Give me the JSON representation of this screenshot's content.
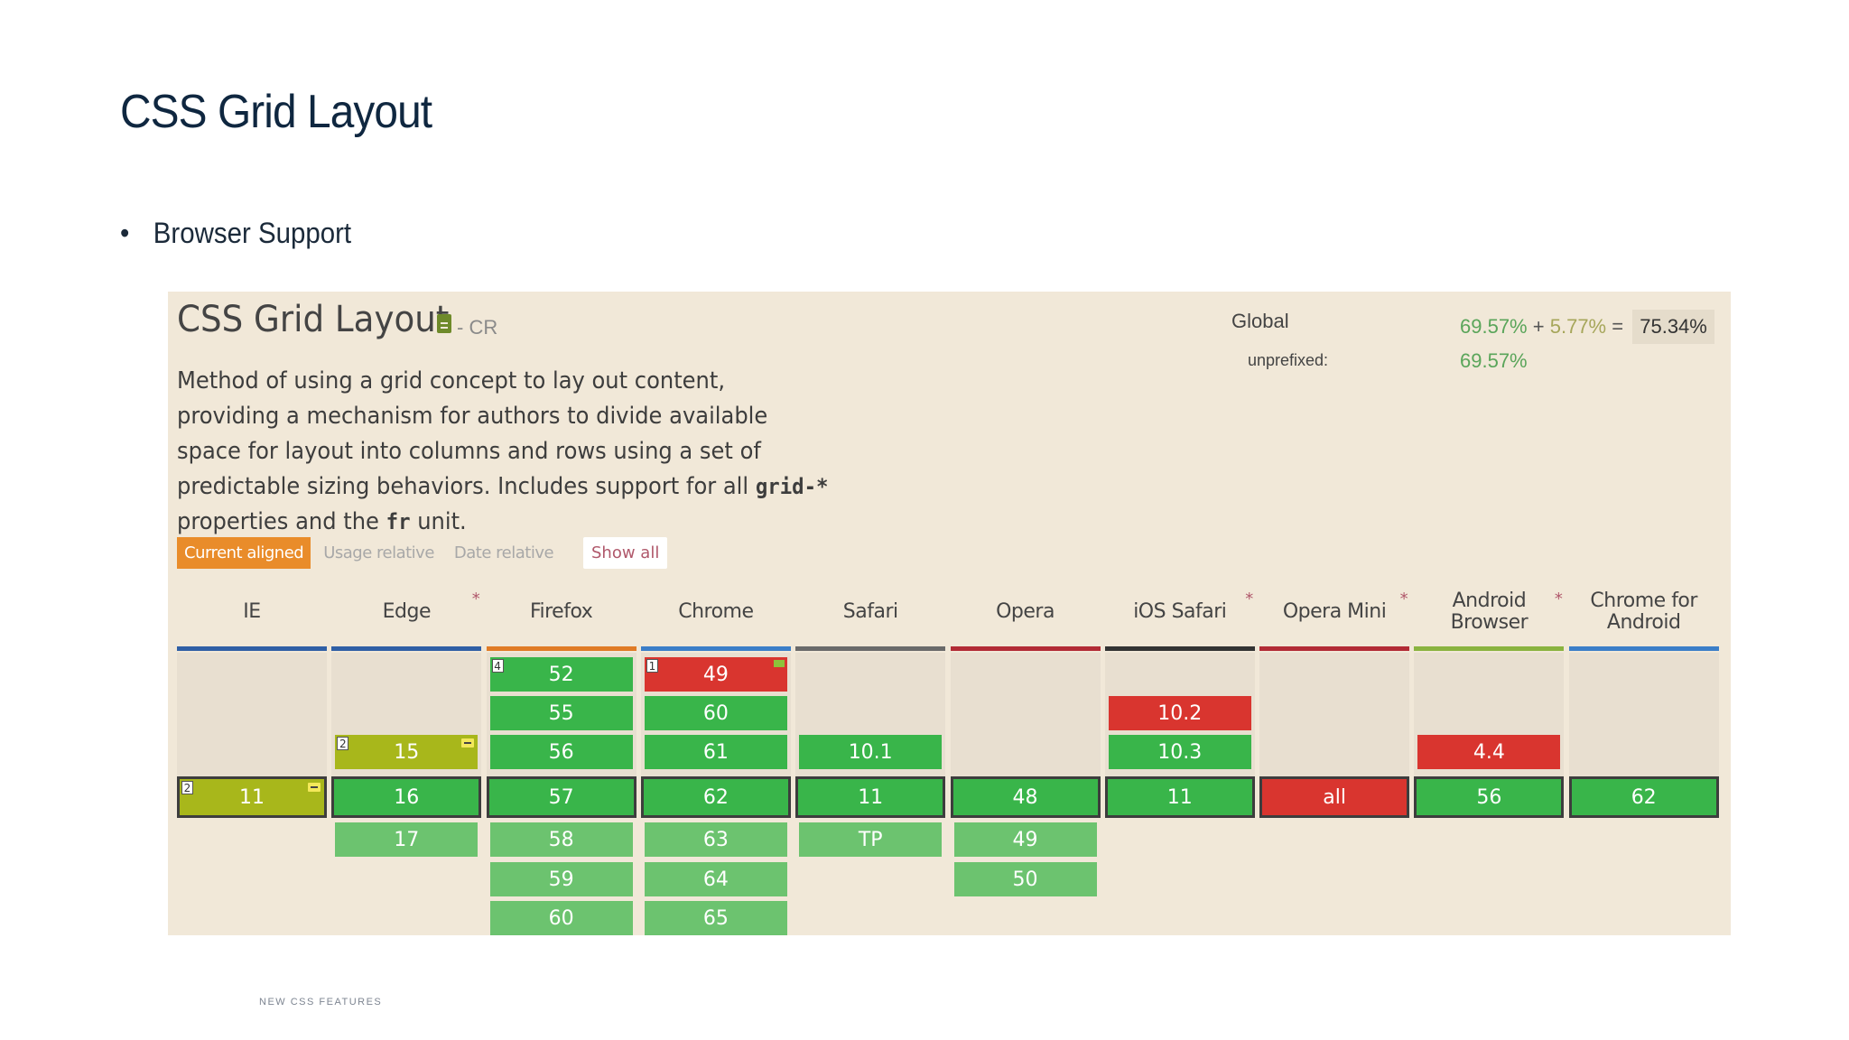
{
  "slide": {
    "title": "CSS Grid Layout",
    "bullet": "Browser Support",
    "footer": "NEW CSS FEATURES"
  },
  "caniuse": {
    "title": "CSS Grid Layout",
    "status": "- CR",
    "status_icon": "document-icon",
    "description_parts": [
      "Method of using a grid concept to lay out content, providing a mechanism for authors to divide available space for layout into columns and rows using a set of predictable sizing behaviors. Includes support for all ",
      "grid-*",
      " properties and the ",
      "fr",
      " unit."
    ],
    "global_label": "Global",
    "unprefixed_label": "unprefixed:",
    "global_supported": "69.57%",
    "global_partial": "5.77%",
    "global_plus": "+",
    "global_equals": "=",
    "global_total": "75.34%",
    "unprefixed_value": "69.57%",
    "view_buttons": [
      "Current aligned",
      "Usage relative",
      "Date relative"
    ],
    "show_all": "Show all",
    "colors": {
      "supported": "#39b54a",
      "not_supported": "#d9352f",
      "partial": "#a8b71b",
      "future": "#6cc36f",
      "active_button": "#e98c2a"
    },
    "browsers": [
      {
        "name": "IE",
        "star": "",
        "bar_color": "#2f5fa5",
        "cells": [
          {
            "v": "11",
            "s": "p",
            "row": 3,
            "note": "2",
            "minus": true
          }
        ]
      },
      {
        "name": "Edge",
        "star": "*",
        "bar_color": "#2f5fa5",
        "cells": [
          {
            "v": "15",
            "s": "p",
            "row": 2,
            "note": "2",
            "minus": true
          },
          {
            "v": "16",
            "s": "y1",
            "row": 3
          },
          {
            "v": "17",
            "s": "fut",
            "row": 4
          }
        ]
      },
      {
        "name": "Firefox",
        "star": "",
        "bar_color": "#e07b26",
        "cells": [
          {
            "v": "52",
            "s": "y1",
            "row": 0,
            "note": "4"
          },
          {
            "v": "55",
            "s": "y1",
            "row": 1
          },
          {
            "v": "56",
            "s": "y1",
            "row": 2
          },
          {
            "v": "57",
            "s": "y1",
            "row": 3
          },
          {
            "v": "58",
            "s": "fut",
            "row": 4
          },
          {
            "v": "59",
            "s": "fut",
            "row": 5
          },
          {
            "v": "60",
            "s": "fut",
            "row": 6
          }
        ]
      },
      {
        "name": "Chrome",
        "star": "",
        "bar_color": "#3b7ec8",
        "cells": [
          {
            "v": "49",
            "s": "n",
            "row": 0,
            "note": "1",
            "flag": true
          },
          {
            "v": "60",
            "s": "y1",
            "row": 1
          },
          {
            "v": "61",
            "s": "y1",
            "row": 2
          },
          {
            "v": "62",
            "s": "y1",
            "row": 3
          },
          {
            "v": "63",
            "s": "fut",
            "row": 4
          },
          {
            "v": "64",
            "s": "fut",
            "row": 5
          },
          {
            "v": "65",
            "s": "fut",
            "row": 6
          }
        ]
      },
      {
        "name": "Safari",
        "star": "",
        "bar_color": "#6a6a6a",
        "cells": [
          {
            "v": "10.1",
            "s": "y1",
            "row": 2
          },
          {
            "v": "11",
            "s": "y1",
            "row": 3
          },
          {
            "v": "TP",
            "s": "fut",
            "row": 4
          }
        ]
      },
      {
        "name": "Opera",
        "star": "",
        "bar_color": "#b22b35",
        "cells": [
          {
            "v": "48",
            "s": "y1",
            "row": 3
          },
          {
            "v": "49",
            "s": "fut",
            "row": 4
          },
          {
            "v": "50",
            "s": "fut",
            "row": 5
          }
        ]
      },
      {
        "name": "iOS Safari",
        "star": "*",
        "bar_color": "#333333",
        "cells": [
          {
            "v": "10.2",
            "s": "n",
            "row": 1
          },
          {
            "v": "10.3",
            "s": "y1",
            "row": 2
          },
          {
            "v": "11",
            "s": "y1",
            "row": 3
          }
        ]
      },
      {
        "name": "Opera Mini",
        "star": "*",
        "bar_color": "#b22b35",
        "cells": [
          {
            "v": "all",
            "s": "n",
            "row": 3
          }
        ]
      },
      {
        "name": "Android Browser",
        "star": "*",
        "bar_color": "#8ab33f",
        "cells": [
          {
            "v": "4.4",
            "s": "n",
            "row": 2
          },
          {
            "v": "56",
            "s": "y1",
            "row": 3
          }
        ]
      },
      {
        "name": "Chrome for Android",
        "star": "",
        "bar_color": "#3b7ec8",
        "cells": [
          {
            "v": "62",
            "s": "y1",
            "row": 3
          }
        ]
      }
    ]
  }
}
